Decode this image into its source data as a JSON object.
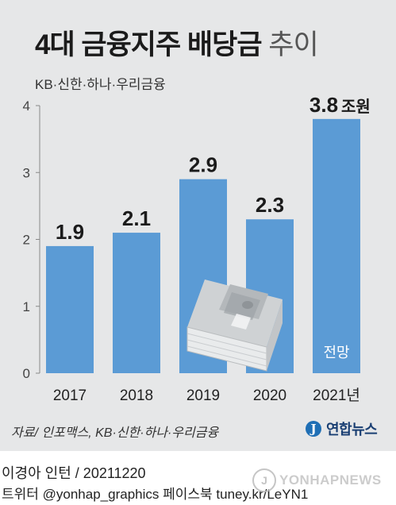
{
  "title_main": "4대 금융지주 배당금",
  "title_suffix": "추이",
  "subtitle": "KB·신한·하나·우리금융",
  "source": "자료/ 인포맥스, KB·신한·하나·우리금융",
  "logo_label": "연합뉴스",
  "credit": "이경아 인턴 / 20211220",
  "social": "트위터 @yonhap_graphics  페이스북 tuney.kr/LeYN1",
  "watermark": "YONHAPNEWS",
  "colors": {
    "bar": "#5b9bd5",
    "axis": "#888888",
    "label": "#1b1b1b",
    "forecast_text": "#ffffff"
  },
  "icon": "stack-of-cash-icon",
  "chart_data": {
    "type": "bar",
    "categories": [
      "2017",
      "2018",
      "2019",
      "2020",
      "2021년"
    ],
    "values": [
      1.9,
      2.1,
      2.9,
      2.3,
      3.8
    ],
    "data_labels": [
      "1.9",
      "2.1",
      "2.9",
      "2.3",
      "3.8"
    ],
    "last_label_unit": "조원",
    "forecast_note": "전망",
    "yticks": [
      "0",
      "1",
      "2",
      "3",
      "4"
    ],
    "ylim": [
      0,
      4
    ],
    "grid": false,
    "legend": "none"
  }
}
